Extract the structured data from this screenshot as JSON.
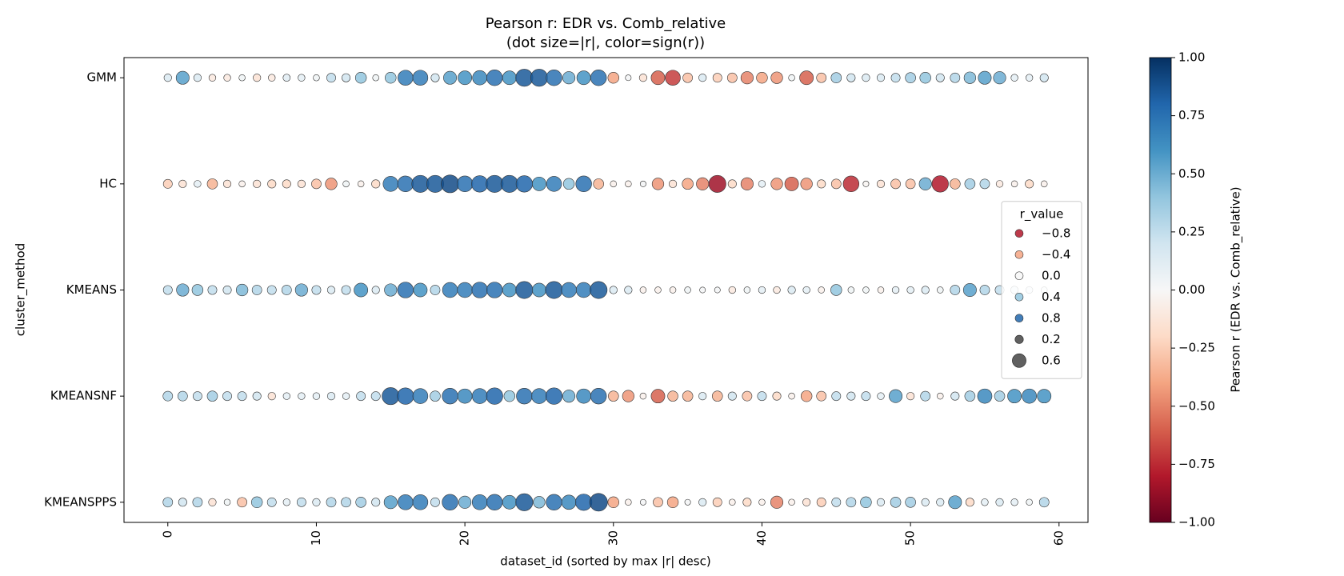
{
  "chart_data": {
    "type": "bubble",
    "title": "Pearson r: EDR vs. Comb_relative",
    "subtitle": "(dot size=|r|, color=sign(r))",
    "x_label": "dataset_id (sorted by max |r| desc)",
    "y_label": "cluster_method",
    "xlim": [
      -2.95,
      61.95
    ],
    "xticks": [
      0,
      10,
      20,
      30,
      40,
      50,
      60
    ],
    "x": [
      0,
      1,
      2,
      3,
      4,
      5,
      6,
      7,
      8,
      9,
      10,
      11,
      12,
      13,
      14,
      15,
      16,
      17,
      18,
      19,
      20,
      21,
      22,
      23,
      24,
      25,
      26,
      27,
      28,
      29,
      30,
      31,
      32,
      33,
      34,
      35,
      36,
      37,
      38,
      39,
      40,
      41,
      42,
      43,
      44,
      45,
      46,
      47,
      48,
      49,
      50,
      51,
      52,
      53,
      54,
      55,
      56,
      57,
      58,
      59
    ],
    "categories": [
      "GMM",
      "HC",
      "KMEANS",
      "KMEANSNF",
      "KMEANSPPS"
    ],
    "values": [
      [
        0.15,
        0.55,
        0.15,
        -0.1,
        -0.1,
        0.05,
        -0.15,
        -0.1,
        0.12,
        0.1,
        0.05,
        0.25,
        0.2,
        0.4,
        0.05,
        0.4,
        0.7,
        0.7,
        0.2,
        0.55,
        0.6,
        0.65,
        0.75,
        0.6,
        0.85,
        0.85,
        0.75,
        0.5,
        0.6,
        0.75,
        -0.4,
        0.02,
        -0.15,
        -0.6,
        -0.7,
        -0.3,
        0.15,
        -0.25,
        -0.3,
        -0.5,
        -0.4,
        -0.45,
        0.05,
        -0.6,
        -0.3,
        0.35,
        0.2,
        0.15,
        0.15,
        0.25,
        0.35,
        0.4,
        0.2,
        0.3,
        0.45,
        0.55,
        0.5,
        0.1,
        0.1,
        0.2
      ],
      [
        -0.25,
        -0.15,
        0.1,
        -0.35,
        -0.15,
        -0.05,
        -0.15,
        -0.2,
        -0.2,
        -0.15,
        -0.3,
        -0.45,
        0.05,
        -0.05,
        -0.2,
        0.7,
        0.75,
        0.85,
        0.85,
        0.9,
        0.75,
        0.8,
        0.85,
        0.85,
        0.8,
        0.6,
        0.7,
        0.4,
        0.75,
        -0.35,
        -0.05,
        -0.05,
        0.02,
        -0.45,
        -0.15,
        -0.4,
        -0.5,
        -0.85,
        -0.2,
        -0.5,
        0.1,
        -0.45,
        -0.6,
        -0.45,
        -0.2,
        -0.3,
        -0.75,
        -0.02,
        -0.15,
        -0.3,
        -0.3,
        0.5,
        -0.8,
        -0.35,
        0.35,
        0.3,
        -0.1,
        -0.05,
        -0.2,
        -0.05
      ],
      [
        0.25,
        0.5,
        0.4,
        0.25,
        0.2,
        0.45,
        0.3,
        0.25,
        0.3,
        0.5,
        0.25,
        0.15,
        0.25,
        0.6,
        0.15,
        0.5,
        0.75,
        0.6,
        0.3,
        0.7,
        0.7,
        0.75,
        0.75,
        0.6,
        0.85,
        0.6,
        0.85,
        0.7,
        0.7,
        0.85,
        0.15,
        0.15,
        -0.05,
        -0.05,
        -0.05,
        0.05,
        0.02,
        0.02,
        -0.1,
        0.05,
        0.1,
        -0.1,
        0.15,
        0.1,
        -0.05,
        0.4,
        0.05,
        0.05,
        -0.05,
        0.1,
        0.1,
        0.15,
        0.05,
        0.3,
        0.55,
        0.3,
        0.25,
        0.15,
        0.1,
        0.05
      ],
      [
        0.3,
        0.3,
        0.25,
        0.35,
        0.25,
        0.25,
        0.2,
        -0.15,
        0.1,
        0.1,
        0.1,
        0.15,
        0.1,
        0.25,
        0.25,
        0.85,
        0.8,
        0.7,
        0.35,
        0.75,
        0.65,
        0.7,
        0.8,
        0.4,
        0.75,
        0.7,
        0.8,
        0.5,
        0.65,
        0.75,
        -0.35,
        -0.45,
        -0.05,
        -0.6,
        -0.35,
        -0.35,
        0.15,
        -0.35,
        0.2,
        -0.3,
        0.25,
        -0.2,
        -0.05,
        -0.4,
        -0.3,
        0.25,
        0.2,
        0.25,
        0.1,
        0.55,
        -0.15,
        0.3,
        -0.05,
        0.2,
        0.35,
        0.65,
        0.35,
        0.6,
        0.65,
        0.6
      ],
      [
        0.3,
        0.2,
        0.3,
        -0.15,
        0.05,
        -0.3,
        0.4,
        0.25,
        0.1,
        0.25,
        0.15,
        0.3,
        0.3,
        0.35,
        0.2,
        0.55,
        0.7,
        0.7,
        0.25,
        0.75,
        0.5,
        0.7,
        0.75,
        0.6,
        0.85,
        0.45,
        0.75,
        0.65,
        0.8,
        0.9,
        -0.4,
        -0.05,
        0.02,
        -0.3,
        -0.4,
        0.02,
        0.15,
        -0.25,
        -0.05,
        -0.2,
        -0.05,
        -0.5,
        -0.05,
        -0.15,
        -0.25,
        0.25,
        0.3,
        0.4,
        0.15,
        0.35,
        0.35,
        0.15,
        0.15,
        0.55,
        -0.2,
        0.1,
        0.15,
        0.1,
        0.05,
        0.3
      ]
    ],
    "colormap": "RdBu",
    "clim": [
      -1,
      1
    ],
    "colorbar_label": "Pearson r (EDR vs. Comb_relative)",
    "colorbar_ticks": [
      {
        "value": -1,
        "label": "−1.00"
      },
      {
        "value": -0.75,
        "label": "−0.75"
      },
      {
        "value": -0.5,
        "label": "−0.50"
      },
      {
        "value": -0.25,
        "label": "−0.25"
      },
      {
        "value": 0,
        "label": "0.00"
      },
      {
        "value": 0.25,
        "label": "0.25"
      },
      {
        "value": 0.5,
        "label": "0.50"
      },
      {
        "value": 0.75,
        "label": "0.75"
      },
      {
        "value": 1,
        "label": "1.00"
      }
    ],
    "legend": {
      "title": "r_value",
      "loc": "center right",
      "hue_entries": [
        {
          "value": -0.8,
          "label": "−0.8"
        },
        {
          "value": -0.4,
          "label": "−0.4"
        },
        {
          "value": 0,
          "label": "0.0"
        },
        {
          "value": 0.4,
          "label": "0.4"
        },
        {
          "value": 0.8,
          "label": "0.8"
        }
      ],
      "size_entries": [
        {
          "value": 0.2,
          "label": "0.2"
        },
        {
          "value": 0.6,
          "label": "0.6"
        }
      ]
    }
  }
}
